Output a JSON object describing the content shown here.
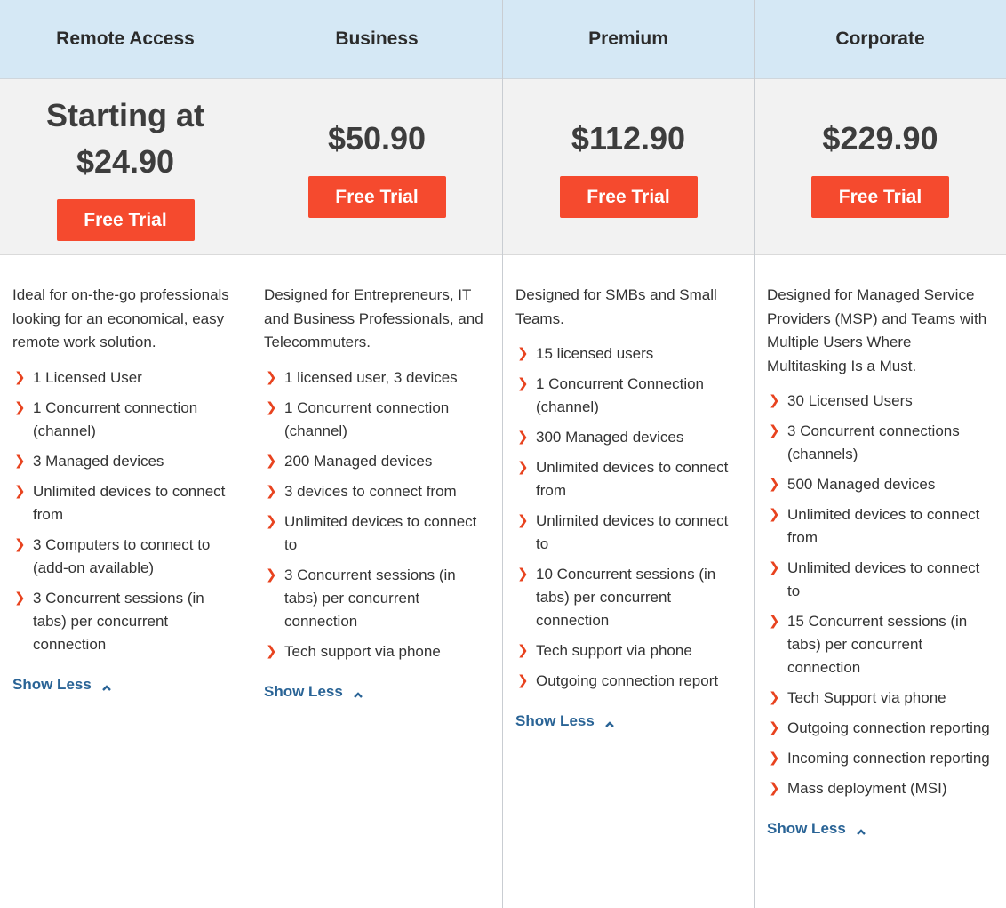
{
  "plans": [
    {
      "name": "Remote Access",
      "price_prefix": "Starting at",
      "price": "$24.90",
      "button_label": "Free Trial",
      "description": "Ideal for on-the-go professionals looking for an economical, easy remote work solution.",
      "features": [
        "1 Licensed User",
        "1 Concurrent connection (channel)",
        "3 Managed devices",
        "Unlimited devices to connect from",
        "3 Computers to connect to (add-on available)",
        "3 Concurrent sessions (in tabs) per concurrent connection"
      ],
      "toggle_label": "Show Less"
    },
    {
      "name": "Business",
      "price_prefix": "",
      "price": "$50.90",
      "button_label": "Free Trial",
      "description": "Designed for Entrepreneurs, IT and Business Professionals, and Telecommuters.",
      "features": [
        "1 licensed user, 3 devices",
        "1 Concurrent connection (channel)",
        "200 Managed devices",
        "3 devices to connect from",
        "Unlimited devices to connect to",
        "3 Concurrent sessions (in tabs) per concurrent connection",
        "Tech support via phone"
      ],
      "toggle_label": "Show Less"
    },
    {
      "name": "Premium",
      "price_prefix": "",
      "price": "$112.90",
      "button_label": "Free Trial",
      "description": "Designed for SMBs and Small Teams.",
      "features": [
        "15 licensed users",
        "1 Concurrent Connection (channel)",
        "300 Managed devices",
        "Unlimited devices to connect from",
        "Unlimited devices to connect to",
        "10 Concurrent sessions (in tabs) per concurrent connection",
        "Tech support via phone",
        "Outgoing connection report"
      ],
      "toggle_label": "Show Less"
    },
    {
      "name": "Corporate",
      "price_prefix": "",
      "price": "$229.90",
      "button_label": "Free Trial",
      "description": "Designed for Managed Service Providers (MSP) and Teams with Multiple Users Where Multitasking Is a Must.",
      "features": [
        "30 Licensed Users",
        "3 Concurrent connections (channels)",
        "500 Managed devices",
        "Unlimited devices to connect from",
        "Unlimited devices to connect to",
        "15 Concurrent sessions (in tabs) per concurrent connection",
        "Tech Support via phone",
        "Outgoing connection reporting",
        "Incoming connection reporting",
        "Mass deployment (MSI)"
      ],
      "toggle_label": "Show Less"
    }
  ],
  "colors": {
    "header_bg": "#d5e8f5",
    "price_bg": "#f2f2f2",
    "button_bg": "#f54a2e",
    "bullet": "#e8431f",
    "link": "#2a6496"
  },
  "icons": {
    "bullet": "chevron-right-icon",
    "toggle": "chevron-up-icon"
  }
}
